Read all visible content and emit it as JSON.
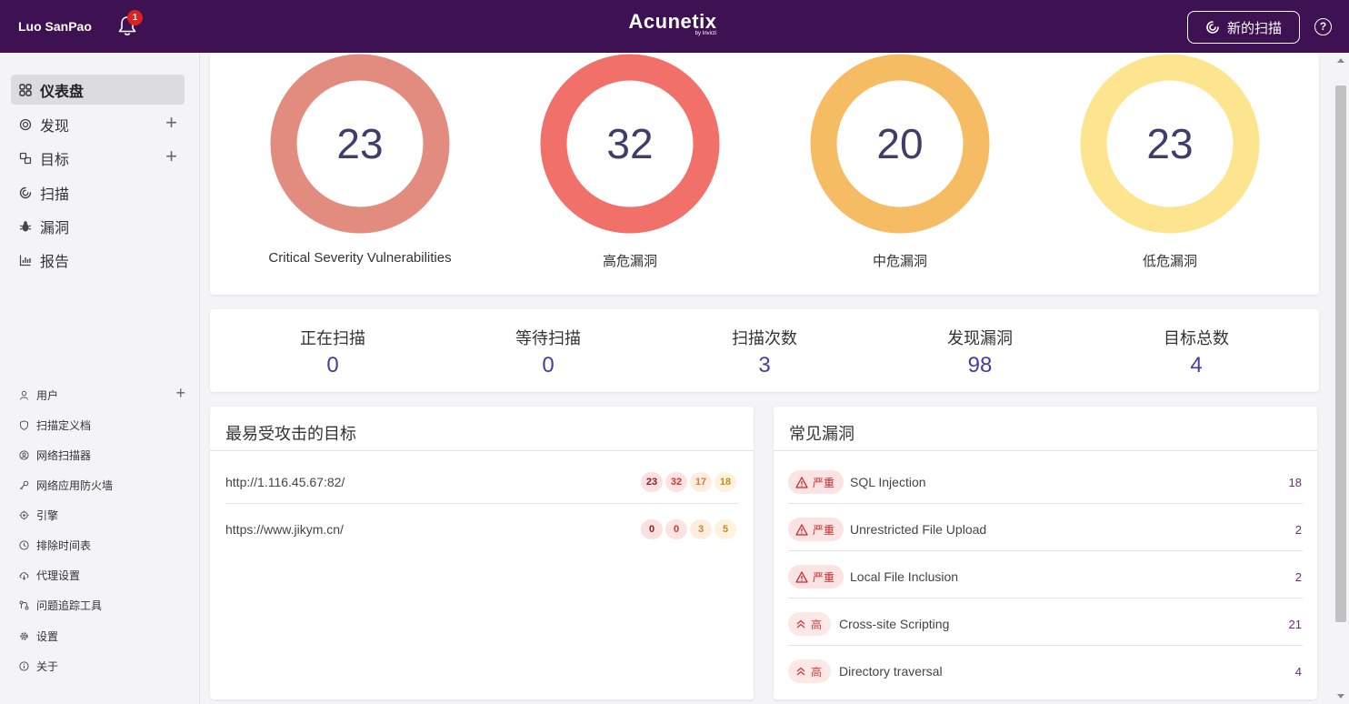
{
  "header": {
    "user_name": "Luo SanPao",
    "notification_count": "1",
    "brand_name": "Acunetix",
    "brand_sub": "by Invicti",
    "new_scan_label": "新的扫描",
    "help_label": "?"
  },
  "sidebar": {
    "main_items": [
      {
        "label": "仪表盘",
        "icon": "dashboard-icon",
        "active": true
      },
      {
        "label": "发现",
        "icon": "discovery-icon",
        "has_add": true
      },
      {
        "label": "目标",
        "icon": "targets-icon",
        "has_add": true
      },
      {
        "label": "扫描",
        "icon": "scans-icon"
      },
      {
        "label": "漏洞",
        "icon": "bug-icon"
      },
      {
        "label": "报告",
        "icon": "reports-icon"
      }
    ],
    "settings_items": [
      {
        "label": "用户",
        "icon": "user-icon",
        "has_add": true
      },
      {
        "label": "扫描定义档",
        "icon": "shield-icon"
      },
      {
        "label": "网络扫描器",
        "icon": "network-scanner-icon"
      },
      {
        "label": "网络应用防火墙",
        "icon": "waf-icon"
      },
      {
        "label": "引擎",
        "icon": "engine-icon"
      },
      {
        "label": "排除时间表",
        "icon": "clock-icon"
      },
      {
        "label": "代理设置",
        "icon": "proxy-icon"
      },
      {
        "label": "问题追踪工具",
        "icon": "issue-tracker-icon"
      },
      {
        "label": "设置",
        "icon": "gear-icon"
      },
      {
        "label": "关于",
        "icon": "info-icon"
      }
    ]
  },
  "severity_summary": [
    {
      "value": "23",
      "label": "Critical Severity Vulnerabilities",
      "color": "#e28b7f"
    },
    {
      "value": "32",
      "label": "高危漏洞",
      "color": "#f1706a"
    },
    {
      "value": "20",
      "label": "中危漏洞",
      "color": "#f6bc64"
    },
    {
      "value": "23",
      "label": "低危漏洞",
      "color": "#fde58f"
    }
  ],
  "stats": [
    {
      "label": "正在扫描",
      "value": "0"
    },
    {
      "label": "等待扫描",
      "value": "0"
    },
    {
      "label": "扫描次数",
      "value": "3"
    },
    {
      "label": "发现漏洞",
      "value": "98"
    },
    {
      "label": "目标总数",
      "value": "4"
    }
  ],
  "top_targets": {
    "title": "最易受攻击的目标",
    "rows": [
      {
        "url": "http://1.116.45.67:82/",
        "critical": "23",
        "high": "32",
        "medium": "17",
        "low": "18"
      },
      {
        "url": "https://www.jikym.cn/",
        "critical": "0",
        "high": "0",
        "medium": "3",
        "low": "5"
      }
    ]
  },
  "common_vulns": {
    "title": "常见漏洞",
    "rows": [
      {
        "severity": "严重",
        "severity_icon": "warning-triangle-icon",
        "name": "SQL Injection",
        "count": "18"
      },
      {
        "severity": "严重",
        "severity_icon": "warning-triangle-icon",
        "name": "Unrestricted File Upload",
        "count": "2"
      },
      {
        "severity": "严重",
        "severity_icon": "warning-triangle-icon",
        "name": "Local File Inclusion",
        "count": "2"
      },
      {
        "severity": "高",
        "severity_icon": "double-chevron-up-icon",
        "name": "Cross-site Scripting",
        "count": "21"
      },
      {
        "severity": "高",
        "severity_icon": "double-chevron-up-icon",
        "name": "Directory traversal",
        "count": "4"
      }
    ]
  },
  "badge_colors": {
    "critical_bg": "#f9e1df",
    "critical_fg": "#8b1f1f",
    "high_bg": "#fde4e2",
    "high_fg": "#d9332f",
    "medium_bg": "#fdeee0",
    "medium_fg": "#e07a35",
    "low_bg": "#fdf3de",
    "low_fg": "#c88a1a"
  }
}
